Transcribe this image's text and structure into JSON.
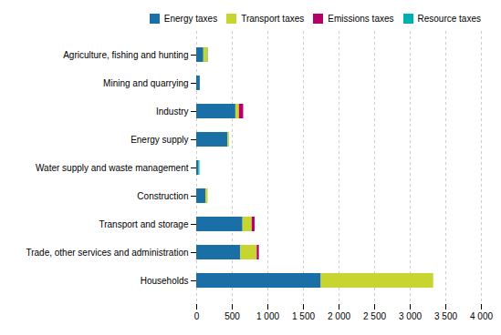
{
  "chart_data": {
    "type": "bar",
    "orientation": "horizontal",
    "stacked": true,
    "categories": [
      "Households",
      "Trade, other services and administration",
      "Transport and storage",
      "Construction",
      "Water supply and waste management",
      "Energy supply",
      "Industry",
      "Mining and quarrying",
      "Agriculture, fishing and hunting"
    ],
    "series": [
      {
        "name": "Energy taxes",
        "color": "#1a6fa6",
        "values": [
          1750,
          620,
          650,
          130,
          30,
          440,
          550,
          50,
          100
        ]
      },
      {
        "name": "Transport taxes",
        "color": "#c7d530",
        "values": [
          1580,
          230,
          130,
          30,
          0,
          20,
          50,
          0,
          60
        ]
      },
      {
        "name": "Emissions taxes",
        "color": "#b5006b",
        "values": [
          0,
          30,
          40,
          0,
          0,
          0,
          60,
          0,
          0
        ]
      },
      {
        "name": "Resource taxes",
        "color": "#00b0b0",
        "values": [
          0,
          0,
          0,
          0,
          15,
          0,
          0,
          0,
          5
        ]
      }
    ],
    "xlim": [
      0,
      4000
    ],
    "xticks": [
      0,
      500,
      {
        "value": 1000,
        "label": "1 000"
      },
      {
        "value": 1500,
        "label": "1 500"
      },
      {
        "value": 2000,
        "label": "2 000"
      },
      {
        "value": 2500,
        "label": "2 500"
      },
      {
        "value": 3000,
        "label": "3 000"
      },
      {
        "value": 3500,
        "label": "3 500"
      },
      {
        "value": 4000,
        "label": "4 000"
      }
    ],
    "grid": true,
    "legend": "upper right"
  }
}
